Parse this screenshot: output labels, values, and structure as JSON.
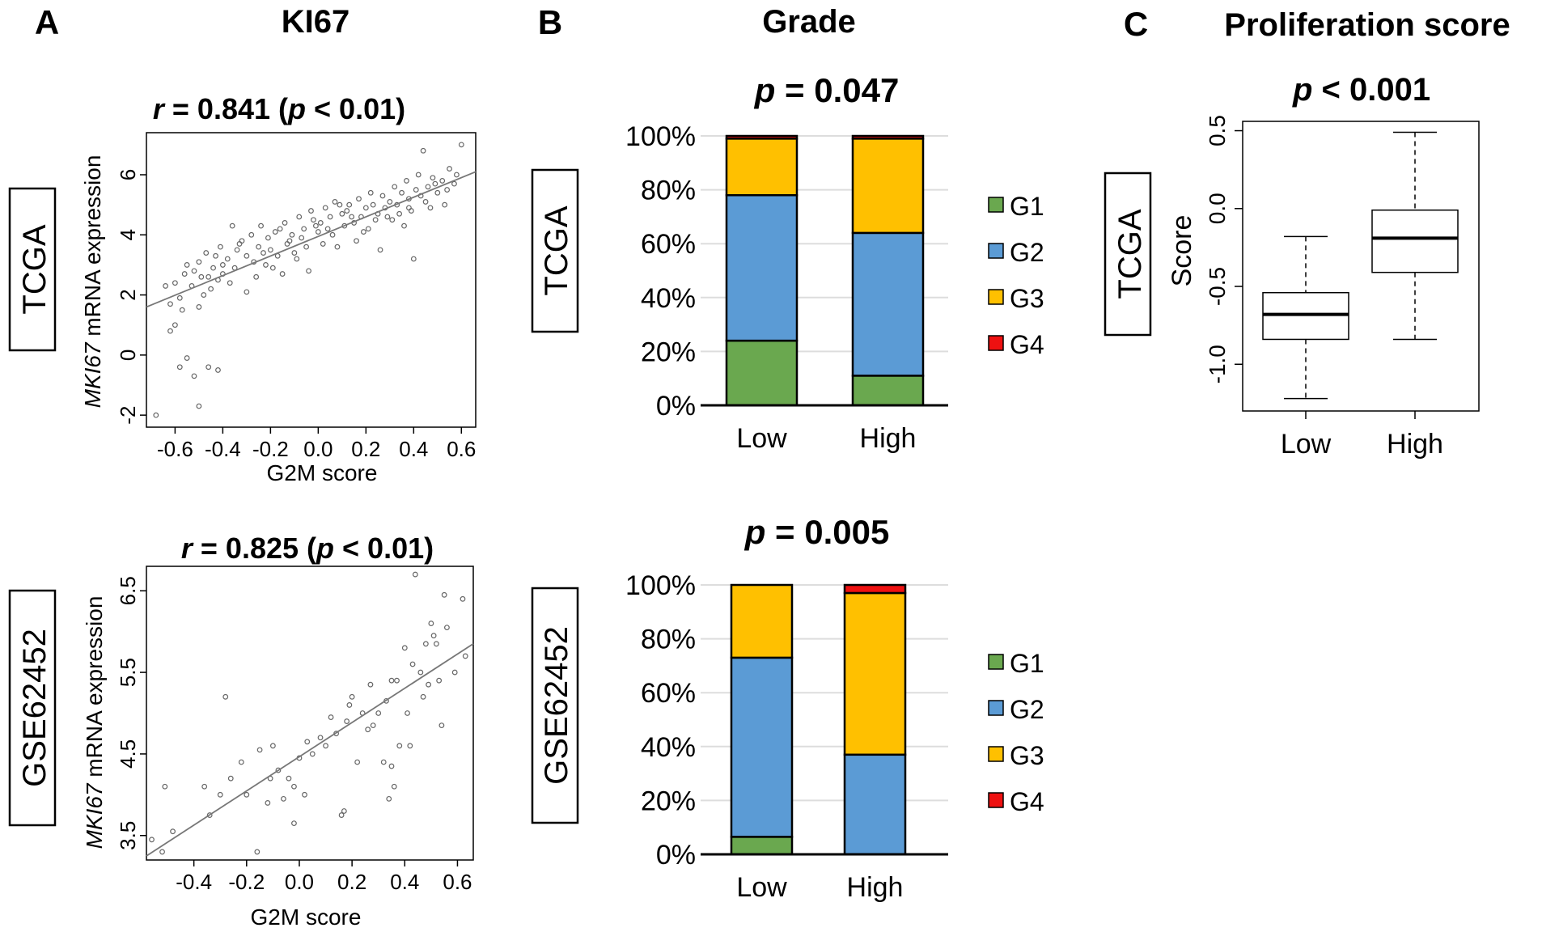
{
  "panel_letters": {
    "a": "A",
    "b": "B",
    "c": "C"
  },
  "panel_titles": {
    "a": "KI67",
    "b": "Grade",
    "c": "Proliferation score"
  },
  "colors": {
    "G1": "#6aa84f",
    "G2": "#5b9bd5",
    "G3": "#ffc000",
    "G4": "#ee1111",
    "box": "#ffffff",
    "point": "#666666",
    "line": "#777777"
  },
  "chart_data": [
    {
      "id": "scatter_tcga",
      "type": "scatter",
      "cohort": "TCGA",
      "title_r": "r",
      "title_eq": " = 0.841 (",
      "title_p": "p",
      "title_tail": " < 0.01)",
      "xlabel": "G2M score",
      "ylabel_italic": "MKI67",
      "ylabel_rest": " mRNA expression",
      "xlim": [
        -0.72,
        0.66
      ],
      "ylim": [
        -2.4,
        7.4
      ],
      "xticks": [
        "-0.6",
        "-0.4",
        "-0.2",
        "0.0",
        "0.2",
        "0.4",
        "0.6"
      ],
      "xtick_values": [
        -0.6,
        -0.4,
        -0.2,
        0.0,
        0.2,
        0.4,
        0.6
      ],
      "yticks": [
        "-2",
        "0",
        "2",
        "4",
        "6"
      ],
      "ytick_values": [
        -2,
        0,
        2,
        4,
        6
      ],
      "fit": {
        "x0": -0.72,
        "y0": 1.6,
        "x1": 0.66,
        "y1": 6.1
      },
      "points": [
        [
          -0.68,
          -2.0
        ],
        [
          -0.62,
          0.8
        ],
        [
          -0.6,
          1.0
        ],
        [
          -0.58,
          -0.4
        ],
        [
          -0.55,
          -0.1
        ],
        [
          -0.52,
          -0.7
        ],
        [
          -0.5,
          -1.7
        ],
        [
          -0.46,
          -0.4
        ],
        [
          -0.42,
          -0.5
        ],
        [
          -0.62,
          1.7
        ],
        [
          -0.6,
          2.4
        ],
        [
          -0.58,
          1.9
        ],
        [
          -0.56,
          2.7
        ],
        [
          -0.55,
          3.0
        ],
        [
          -0.53,
          2.3
        ],
        [
          -0.52,
          2.8
        ],
        [
          -0.5,
          3.1
        ],
        [
          -0.5,
          1.6
        ],
        [
          -0.48,
          2.0
        ],
        [
          -0.47,
          3.4
        ],
        [
          -0.46,
          2.6
        ],
        [
          -0.45,
          2.2
        ],
        [
          -0.44,
          2.9
        ],
        [
          -0.43,
          3.3
        ],
        [
          -0.42,
          2.5
        ],
        [
          -0.41,
          3.6
        ],
        [
          -0.4,
          2.7
        ],
        [
          -0.4,
          3.0
        ],
        [
          -0.38,
          3.2
        ],
        [
          -0.36,
          4.3
        ],
        [
          -0.35,
          2.9
        ],
        [
          -0.34,
          3.5
        ],
        [
          -0.32,
          3.8
        ],
        [
          -0.3,
          3.3
        ],
        [
          -0.3,
          2.1
        ],
        [
          -0.28,
          4.0
        ],
        [
          -0.26,
          2.6
        ],
        [
          -0.25,
          3.6
        ],
        [
          -0.24,
          4.3
        ],
        [
          -0.22,
          3.0
        ],
        [
          -0.21,
          3.9
        ],
        [
          -0.2,
          3.5
        ],
        [
          -0.18,
          4.1
        ],
        [
          -0.17,
          3.3
        ],
        [
          -0.15,
          2.7
        ],
        [
          -0.14,
          4.4
        ],
        [
          -0.12,
          3.8
        ],
        [
          -0.11,
          4.0
        ],
        [
          -0.1,
          3.4
        ],
        [
          -0.09,
          3.2
        ],
        [
          -0.08,
          4.6
        ],
        [
          -0.06,
          4.2
        ],
        [
          -0.05,
          3.6
        ],
        [
          -0.04,
          2.8
        ],
        [
          -0.03,
          4.8
        ],
        [
          -0.02,
          4.5
        ],
        [
          0.0,
          4.1
        ],
        [
          0.01,
          4.4
        ],
        [
          0.02,
          3.7
        ],
        [
          0.03,
          4.9
        ],
        [
          0.05,
          4.6
        ],
        [
          0.06,
          4.0
        ],
        [
          0.07,
          5.1
        ],
        [
          0.08,
          3.6
        ],
        [
          0.1,
          4.7
        ],
        [
          0.11,
          4.3
        ],
        [
          0.12,
          4.8
        ],
        [
          0.13,
          5.0
        ],
        [
          0.15,
          4.4
        ],
        [
          0.16,
          3.8
        ],
        [
          0.17,
          5.2
        ],
        [
          0.18,
          4.6
        ],
        [
          0.2,
          4.9
        ],
        [
          0.21,
          4.2
        ],
        [
          0.22,
          5.4
        ],
        [
          0.23,
          5.0
        ],
        [
          0.25,
          4.7
        ],
        [
          0.26,
          3.5
        ],
        [
          0.27,
          5.3
        ],
        [
          0.28,
          4.9
        ],
        [
          0.3,
          5.1
        ],
        [
          0.31,
          4.5
        ],
        [
          0.32,
          5.6
        ],
        [
          0.33,
          5.0
        ],
        [
          0.35,
          5.4
        ],
        [
          0.36,
          4.3
        ],
        [
          0.37,
          5.8
        ],
        [
          0.38,
          5.2
        ],
        [
          0.39,
          4.8
        ],
        [
          0.4,
          3.2
        ],
        [
          0.41,
          5.5
        ],
        [
          0.42,
          6.0
        ],
        [
          0.43,
          5.3
        ],
        [
          0.44,
          6.8
        ],
        [
          0.46,
          5.6
        ],
        [
          0.47,
          4.9
        ],
        [
          0.48,
          5.9
        ],
        [
          0.5,
          5.4
        ],
        [
          0.52,
          5.8
        ],
        [
          0.53,
          5.0
        ],
        [
          0.55,
          6.2
        ],
        [
          0.57,
          5.7
        ],
        [
          0.6,
          7.0
        ],
        [
          -0.64,
          2.3
        ],
        [
          -0.57,
          1.5
        ],
        [
          -0.49,
          2.6
        ],
        [
          -0.37,
          2.4
        ],
        [
          -0.27,
          3.1
        ],
        [
          -0.19,
          2.9
        ],
        [
          -0.13,
          3.7
        ],
        [
          -0.07,
          3.9
        ],
        [
          0.04,
          4.2
        ],
        [
          0.14,
          4.6
        ],
        [
          0.24,
          4.5
        ],
        [
          0.34,
          4.7
        ],
        [
          0.45,
          5.1
        ],
        [
          0.54,
          5.5
        ],
        [
          -0.33,
          3.7
        ],
        [
          -0.23,
          3.4
        ],
        [
          -0.16,
          4.2
        ],
        [
          -0.01,
          4.3
        ],
        [
          0.09,
          5.0
        ],
        [
          0.19,
          4.1
        ],
        [
          0.29,
          4.6
        ],
        [
          0.38,
          4.9
        ],
        [
          0.49,
          5.7
        ],
        [
          0.58,
          6.0
        ]
      ]
    },
    {
      "id": "scatter_gse",
      "type": "scatter",
      "cohort": "GSE62452",
      "title_r": "r",
      "title_eq": " = 0.825 (",
      "title_p": "p",
      "title_tail": " < 0.01)",
      "xlabel": "G2M score",
      "ylabel_italic": "MKI67",
      "ylabel_rest": " mRNA expression",
      "xlim": [
        -0.58,
        0.66
      ],
      "ylim": [
        3.2,
        6.8
      ],
      "xticks": [
        "-0.4",
        "-0.2",
        "0.0",
        "0.2",
        "0.4",
        "0.6"
      ],
      "xtick_values": [
        -0.4,
        -0.2,
        0.0,
        0.2,
        0.4,
        0.6
      ],
      "yticks": [
        "3.5",
        "4.5",
        "5.5",
        "6.5"
      ],
      "ytick_values": [
        3.5,
        4.5,
        5.5,
        6.5
      ],
      "fit": {
        "x0": -0.58,
        "y0": 3.25,
        "x1": 0.66,
        "y1": 5.85
      },
      "points": [
        [
          -0.56,
          3.45
        ],
        [
          -0.52,
          3.3
        ],
        [
          -0.51,
          4.1
        ],
        [
          -0.48,
          3.55
        ],
        [
          -0.36,
          4.1
        ],
        [
          -0.34,
          3.75
        ],
        [
          -0.3,
          4.0
        ],
        [
          -0.28,
          5.2
        ],
        [
          -0.26,
          4.2
        ],
        [
          -0.22,
          4.4
        ],
        [
          -0.2,
          4.0
        ],
        [
          -0.16,
          3.3
        ],
        [
          -0.15,
          4.55
        ],
        [
          -0.12,
          3.9
        ],
        [
          -0.11,
          4.2
        ],
        [
          -0.1,
          4.6
        ],
        [
          -0.08,
          4.3
        ],
        [
          -0.06,
          3.95
        ],
        [
          -0.04,
          4.2
        ],
        [
          -0.02,
          3.65
        ],
        [
          -0.02,
          4.1
        ],
        [
          0.0,
          4.45
        ],
        [
          0.02,
          4.0
        ],
        [
          0.03,
          4.65
        ],
        [
          0.05,
          4.5
        ],
        [
          0.08,
          4.7
        ],
        [
          0.1,
          4.6
        ],
        [
          0.12,
          4.95
        ],
        [
          0.14,
          4.75
        ],
        [
          0.16,
          3.75
        ],
        [
          0.17,
          3.8
        ],
        [
          0.18,
          4.9
        ],
        [
          0.19,
          5.1
        ],
        [
          0.2,
          5.2
        ],
        [
          0.22,
          4.4
        ],
        [
          0.24,
          5.0
        ],
        [
          0.26,
          4.8
        ],
        [
          0.27,
          5.35
        ],
        [
          0.28,
          4.85
        ],
        [
          0.3,
          5.0
        ],
        [
          0.32,
          4.4
        ],
        [
          0.33,
          5.15
        ],
        [
          0.34,
          3.95
        ],
        [
          0.35,
          4.35
        ],
        [
          0.35,
          5.4
        ],
        [
          0.36,
          4.1
        ],
        [
          0.37,
          5.4
        ],
        [
          0.38,
          4.6
        ],
        [
          0.4,
          5.8
        ],
        [
          0.41,
          5.0
        ],
        [
          0.42,
          4.6
        ],
        [
          0.43,
          5.6
        ],
        [
          0.44,
          6.7
        ],
        [
          0.46,
          5.5
        ],
        [
          0.47,
          5.2
        ],
        [
          0.48,
          5.85
        ],
        [
          0.49,
          5.35
        ],
        [
          0.5,
          6.1
        ],
        [
          0.51,
          5.95
        ],
        [
          0.52,
          5.85
        ],
        [
          0.53,
          5.4
        ],
        [
          0.54,
          4.85
        ],
        [
          0.55,
          6.45
        ],
        [
          0.56,
          6.05
        ],
        [
          0.59,
          5.5
        ],
        [
          0.62,
          6.4
        ],
        [
          0.63,
          5.7
        ]
      ]
    },
    {
      "id": "bar_tcga",
      "type": "bar",
      "cohort": "TCGA",
      "title_p": "p",
      "title_tail": " = 0.047",
      "categories": [
        "Low",
        "High"
      ],
      "yticks": [
        "0%",
        "20%",
        "40%",
        "60%",
        "80%",
        "100%"
      ],
      "ytick_values": [
        0,
        20,
        40,
        60,
        80,
        100
      ],
      "series": [
        {
          "name": "G1",
          "values": [
            24,
            11
          ]
        },
        {
          "name": "G2",
          "values": [
            54,
            53
          ]
        },
        {
          "name": "G3",
          "values": [
            21,
            35
          ]
        },
        {
          "name": "G4",
          "values": [
            1,
            1
          ]
        }
      ],
      "legend": [
        "G1",
        "G2",
        "G3",
        "G4"
      ]
    },
    {
      "id": "bar_gse",
      "type": "bar",
      "cohort": "GSE62452",
      "title_p": "p",
      "title_tail": " = 0.005",
      "categories": [
        "Low",
        "High"
      ],
      "yticks": [
        "0%",
        "20%",
        "40%",
        "60%",
        "80%",
        "100%"
      ],
      "ytick_values": [
        0,
        20,
        40,
        60,
        80,
        100
      ],
      "series": [
        {
          "name": "G1",
          "values": [
            6.5,
            0
          ]
        },
        {
          "name": "G2",
          "values": [
            66.5,
            37
          ]
        },
        {
          "name": "G3",
          "values": [
            27,
            60
          ]
        },
        {
          "name": "G4",
          "values": [
            0,
            3
          ]
        }
      ],
      "legend": [
        "G1",
        "G2",
        "G3",
        "G4"
      ]
    },
    {
      "id": "box_tcga",
      "type": "box",
      "cohort": "TCGA",
      "title_p": "p",
      "title_tail": " < 0.001",
      "ylabel": "Score",
      "categories": [
        "Low",
        "High"
      ],
      "ylim": [
        -1.3,
        0.56
      ],
      "yticks": [
        "-1.0",
        "-0.5",
        "0.0",
        "0.5"
      ],
      "ytick_values": [
        -1.0,
        -0.5,
        0.0,
        0.5
      ],
      "boxes": [
        {
          "name": "Low",
          "min": -1.22,
          "q1": -0.84,
          "median": -0.68,
          "q3": -0.54,
          "max": -0.18
        },
        {
          "name": "High",
          "min": -0.84,
          "q1": -0.41,
          "median": -0.19,
          "q3": -0.01,
          "max": 0.49
        }
      ]
    }
  ]
}
